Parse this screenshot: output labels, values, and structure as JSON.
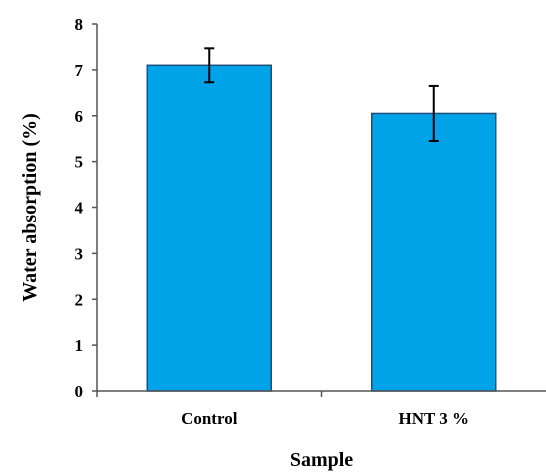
{
  "chart_data": {
    "type": "bar",
    "categories": [
      "Control",
      "HNT 3 %"
    ],
    "values": [
      7.1,
      6.05
    ],
    "error": [
      0.37,
      0.6
    ],
    "xlabel": "Sample",
    "ylabel": "Water absorption (%)",
    "ylim": [
      0,
      8
    ],
    "yticks": [
      "0",
      "1",
      "2",
      "3",
      "4",
      "5",
      "6",
      "7",
      "8"
    ],
    "grid": false,
    "legend": "none",
    "bar_color": "#00a2e8",
    "bar_edge_color": "#1f4e79",
    "error_bar_color": "#000000"
  }
}
